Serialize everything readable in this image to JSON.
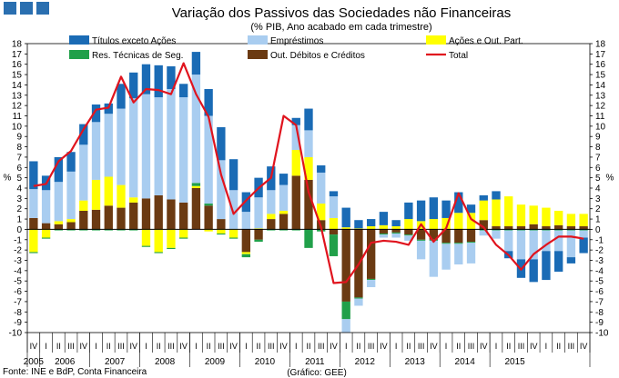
{
  "header": {
    "title": "Variação dos Passivos das Sociedades não Financeiras",
    "subtitle": "(% PIB, Ano acabado em cada trimestre)"
  },
  "footer": {
    "source": "Fonte: INE e BdP, Conta Financeira",
    "graph_credit": "(Gráfico: GEE)"
  },
  "legend": [
    {
      "key": "titulos",
      "label": "Títulos exceto Ações",
      "color": "#1a6bb5",
      "kind": "box"
    },
    {
      "key": "emprestimos",
      "label": "Empréstimos",
      "color": "#a9cdf0",
      "kind": "box"
    },
    {
      "key": "acoes",
      "label": "Ações e Out. Part.",
      "color": "#ffff00",
      "kind": "box"
    },
    {
      "key": "res",
      "label": "Res. Técnicas de Seg.",
      "color": "#21a04a",
      "kind": "box"
    },
    {
      "key": "out",
      "label": "Out. Débitos e Créditos",
      "color": "#6b3a12",
      "kind": "box"
    },
    {
      "key": "total",
      "label": "Total",
      "color": "#e0141e",
      "kind": "line"
    }
  ],
  "chart_data": {
    "type": "bar",
    "stacked": true,
    "title": "Variação dos Passivos das Sociedades não Financeiras",
    "subtitle": "(% PIB, Ano acabado em cada trimestre)",
    "ylabel_left": "%",
    "ylabel_right": "%",
    "ylim": [
      -10,
      18
    ],
    "ytick_step": 1,
    "quarters": [
      "IV",
      "I",
      "II",
      "III",
      "IV",
      "I",
      "II",
      "III",
      "IV",
      "I",
      "II",
      "III",
      "IV",
      "I",
      "II",
      "III",
      "IV",
      "I",
      "II",
      "III",
      "IV",
      "I",
      "II",
      "III",
      "IV",
      "I",
      "II",
      "III",
      "IV",
      "I",
      "II",
      "III",
      "IV",
      "I",
      "II",
      "III",
      "IV",
      "I",
      "II",
      "III",
      "IV",
      "I",
      "II",
      "III",
      "IV"
    ],
    "years": [
      {
        "label": "2005",
        "start": 0,
        "count": 1
      },
      {
        "label": "2006",
        "start": 1,
        "count": 4
      },
      {
        "label": "2007",
        "start": 5,
        "count": 4
      },
      {
        "label": "2008",
        "start": 9,
        "count": 4
      },
      {
        "label": "2009",
        "start": 13,
        "count": 4
      },
      {
        "label": "2010",
        "start": 17,
        "count": 4
      },
      {
        "label": "2011",
        "start": 21,
        "count": 4
      },
      {
        "label": "2012",
        "start": 25,
        "count": 4
      },
      {
        "label": "2013",
        "start": 29,
        "count": 4
      },
      {
        "label": "2014",
        "start": 33,
        "count": 4
      },
      {
        "label": "2015",
        "start": 37,
        "count": 4
      }
    ],
    "series": [
      {
        "name": "Out. Débitos e Créditos",
        "key": "out",
        "values": [
          1.1,
          0.6,
          0.5,
          0.7,
          1.8,
          1.9,
          2.3,
          2.1,
          2.6,
          3.0,
          3.3,
          2.9,
          2.6,
          4.0,
          2.3,
          1.0,
          0.0,
          -2.2,
          -1.0,
          1.0,
          1.5,
          5.2,
          4.8,
          0.9,
          -0.5,
          -7.0,
          -6.6,
          -4.8,
          -0.4,
          -0.3,
          -0.5,
          -1.0,
          -1.0,
          -1.3,
          -1.3,
          -1.2,
          0.9,
          0.3,
          0.3,
          0.3,
          0.5,
          0.3,
          0.4,
          0.3,
          0.3
        ]
      },
      {
        "name": "Ações e Out. Part.",
        "key": "acoes",
        "values": [
          -2.2,
          -0.8,
          0.3,
          0.3,
          1.0,
          2.9,
          2.8,
          2.2,
          0.5,
          -1.6,
          -2.2,
          -1.8,
          -0.8,
          0.2,
          -0.2,
          -0.4,
          -0.8,
          -0.2,
          0.1,
          0.5,
          0.3,
          2.5,
          2.2,
          1.6,
          1.1,
          0.2,
          0.1,
          0.3,
          0.4,
          0.3,
          1.0,
          0.8,
          1.0,
          1.1,
          1.6,
          1.6,
          1.9,
          2.6,
          2.9,
          2.1,
          1.8,
          1.8,
          1.4,
          1.2,
          1.2
        ]
      },
      {
        "name": "Res. Técnicas de Seg.",
        "key": "res",
        "values": [
          -0.1,
          -0.1,
          -0.1,
          -0.1,
          -0.1,
          -0.1,
          -0.1,
          -0.1,
          -0.1,
          -0.1,
          -0.1,
          -0.1,
          -0.1,
          0.3,
          0.2,
          -0.1,
          -0.1,
          -0.3,
          -0.2,
          -0.1,
          -0.1,
          -0.1,
          -1.8,
          -0.2,
          -2.1,
          -1.7,
          -0.1,
          -0.1,
          -0.1,
          -0.1,
          -0.1,
          -0.1,
          -0.1,
          -0.1,
          -0.1,
          -0.1,
          -0.1,
          -0.1,
          -0.1,
          -0.1,
          -0.1,
          -0.1,
          -0.1,
          -0.1,
          -0.1
        ]
      },
      {
        "name": "Empréstimos",
        "key": "emprestimos",
        "values": [
          2.8,
          3.2,
          3.8,
          4.6,
          5.4,
          5.6,
          6.1,
          7.4,
          9.6,
          10.1,
          9.5,
          10.7,
          10.2,
          10.5,
          8.5,
          5.7,
          3.8,
          1.7,
          3.0,
          2.3,
          2.5,
          2.4,
          2.6,
          3.0,
          2.1,
          -1.3,
          -0.7,
          -0.7,
          -0.3,
          -0.4,
          -0.5,
          -1.8,
          -3.5,
          -2.5,
          -2.0,
          -2.0,
          -0.5,
          -0.8,
          -2.0,
          -2.8,
          -2.8,
          -2.0,
          -2.0,
          -2.6,
          -0.7
        ]
      },
      {
        "name": "Títulos exceto Ações",
        "key": "titulos",
        "values": [
          2.7,
          1.4,
          2.4,
          1.9,
          2.0,
          1.7,
          1.0,
          2.4,
          2.5,
          2.9,
          3.1,
          2.2,
          1.3,
          2.2,
          2.6,
          3.2,
          3.0,
          1.9,
          1.9,
          2.3,
          1.1,
          0.7,
          2.1,
          0.7,
          0.5,
          1.9,
          0.8,
          0.7,
          1.3,
          0.6,
          1.6,
          2.0,
          2.1,
          1.7,
          2.0,
          0.8,
          0.5,
          0.8,
          -0.7,
          -1.8,
          -2.2,
          -2.8,
          -2.0,
          -0.6,
          -1.5
        ]
      }
    ],
    "total": {
      "name": "Total",
      "values": [
        4.2,
        4.4,
        6.6,
        7.6,
        9.7,
        11.6,
        11.8,
        14.8,
        12.3,
        13.6,
        13.5,
        13.1,
        16.1,
        13.1,
        10.9,
        5.3,
        1.5,
        2.8,
        4.0,
        5.0,
        11.0,
        10.1,
        3.6,
        0.2,
        -5.2,
        -5.1,
        -3.4,
        -1.3,
        -1.1,
        -1.2,
        -1.5,
        0.5,
        -1.2,
        0.1,
        3.5,
        1.0,
        0.2,
        -1.5,
        -2.5,
        -3.9,
        -2.4,
        -1.5,
        -0.7,
        -0.7,
        -0.9
      ]
    }
  }
}
